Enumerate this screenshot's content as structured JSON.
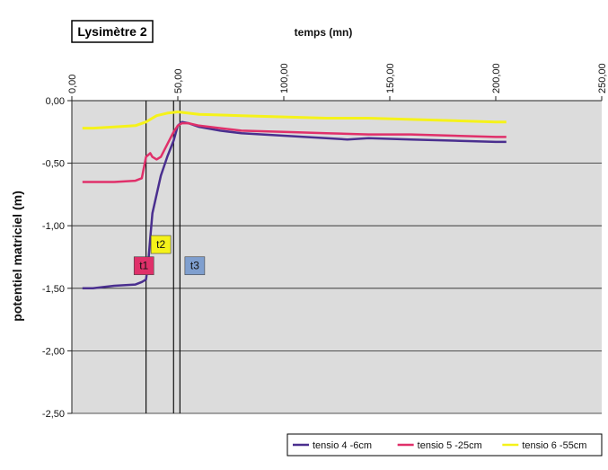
{
  "chart_data": {
    "type": "line",
    "title": "Lysimètre 2",
    "xlabel": "temps (mn)",
    "ylabel": "potentiel matriciel (m)",
    "xlim": [
      0,
      250
    ],
    "ylim": [
      -2.5,
      0
    ],
    "x_ticks": [
      "0,00",
      "50,00",
      "100,00",
      "150,00",
      "200,00",
      "250,00"
    ],
    "y_ticks": [
      "0,00",
      "-0,50",
      "-1,00",
      "-1,50",
      "-2,00",
      "-2,50"
    ],
    "x_tick_values": [
      0,
      50,
      100,
      150,
      200,
      250
    ],
    "y_tick_values": [
      0,
      -0.5,
      -1,
      -1.5,
      -2,
      -2.5
    ],
    "grid": true,
    "legend_position": "bottom-right",
    "series": [
      {
        "name": "tensio 4 -6cm",
        "color": "#4a2f8f",
        "x": [
          5,
          10,
          20,
          30,
          33,
          35,
          36,
          37,
          38,
          40,
          42,
          45,
          48,
          50,
          52,
          55,
          60,
          70,
          80,
          100,
          120,
          130,
          140,
          160,
          180,
          200,
          205
        ],
        "y": [
          -1.5,
          -1.5,
          -1.48,
          -1.47,
          -1.45,
          -1.43,
          -1.3,
          -1.1,
          -0.9,
          -0.75,
          -0.6,
          -0.45,
          -0.32,
          -0.2,
          -0.17,
          -0.18,
          -0.21,
          -0.24,
          -0.26,
          -0.28,
          -0.3,
          -0.31,
          -0.3,
          -0.31,
          -0.32,
          -0.33,
          -0.33
        ]
      },
      {
        "name": "tensio 5 -25cm",
        "color": "#e0306a",
        "x": [
          5,
          10,
          20,
          30,
          33,
          35,
          37,
          38,
          40,
          42,
          45,
          48,
          50,
          52,
          55,
          60,
          70,
          80,
          100,
          120,
          140,
          160,
          180,
          200,
          205
        ],
        "y": [
          -0.65,
          -0.65,
          -0.65,
          -0.64,
          -0.62,
          -0.45,
          -0.42,
          -0.45,
          -0.47,
          -0.45,
          -0.35,
          -0.25,
          -0.2,
          -0.18,
          -0.18,
          -0.2,
          -0.22,
          -0.24,
          -0.25,
          -0.26,
          -0.27,
          -0.27,
          -0.28,
          -0.29,
          -0.29
        ]
      },
      {
        "name": "tensio 6 -55cm",
        "color": "#f5f21a",
        "x": [
          5,
          10,
          20,
          30,
          35,
          40,
          45,
          50,
          55,
          60,
          80,
          100,
          120,
          140,
          160,
          180,
          200,
          205
        ],
        "y": [
          -0.22,
          -0.22,
          -0.21,
          -0.2,
          -0.17,
          -0.12,
          -0.1,
          -0.09,
          -0.1,
          -0.11,
          -0.12,
          -0.13,
          -0.14,
          -0.14,
          -0.15,
          -0.16,
          -0.17,
          -0.17
        ]
      }
    ],
    "vertical_lines": [
      35,
      48,
      51
    ],
    "annotations": [
      {
        "text": "t1",
        "x": 34,
        "y": -1.32,
        "color": "#e0306a"
      },
      {
        "text": "t2",
        "x": 42,
        "y": -1.15,
        "color": "#f5f21a"
      },
      {
        "text": "t3",
        "x": 58,
        "y": -1.32,
        "color": "#7f9fcf"
      }
    ]
  }
}
